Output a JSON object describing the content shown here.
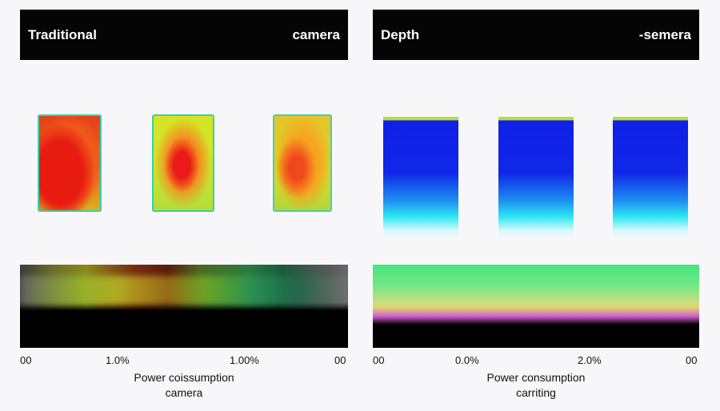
{
  "left_panel": {
    "title_left": "Traditional",
    "title_right": "camera",
    "ticks": [
      "00",
      "1.0%",
      "1.00%",
      "00"
    ],
    "xlabel_line1": "Power coissumption",
    "xlabel_line2": "camera"
  },
  "right_panel": {
    "title_left": "Depth",
    "title_right": "-semera",
    "ticks": [
      "00",
      "0.0%",
      "2.0%",
      "00"
    ],
    "xlabel_line1": "Power consumption",
    "xlabel_line2": "carriting"
  },
  "colors": {
    "header_bg": "#050505",
    "depth_blue": "#1020e6",
    "heat_red": "#e81b10"
  }
}
